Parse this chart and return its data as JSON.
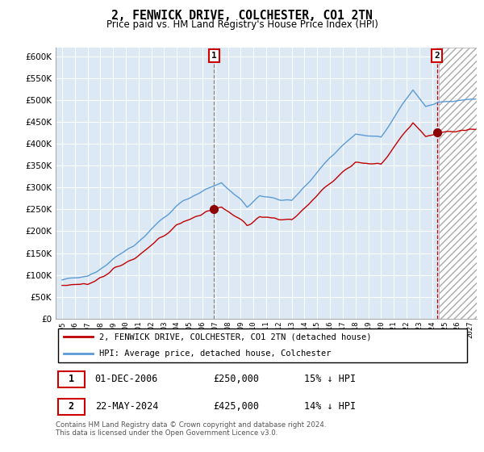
{
  "title": "2, FENWICK DRIVE, COLCHESTER, CO1 2TN",
  "subtitle": "Price paid vs. HM Land Registry's House Price Index (HPI)",
  "legend_line1": "2, FENWICK DRIVE, COLCHESTER, CO1 2TN (detached house)",
  "legend_line2": "HPI: Average price, detached house, Colchester",
  "annotation1_date": "01-DEC-2006",
  "annotation1_price": "£250,000",
  "annotation1_hpi": "15% ↓ HPI",
  "annotation2_date": "22-MAY-2024",
  "annotation2_price": "£425,000",
  "annotation2_hpi": "14% ↓ HPI",
  "footer": "Contains HM Land Registry data © Crown copyright and database right 2024.\nThis data is licensed under the Open Government Licence v3.0.",
  "sale1_year": 2006.917,
  "sale1_price": 250000,
  "sale2_year": 2024.375,
  "sale2_price": 425000,
  "hpi_line_color": "#5b9bd5",
  "price_line_color": "#c00000",
  "sale_marker_color": "#8b0000",
  "background_color": "#ffffff",
  "chart_bg_color": "#dce9f5",
  "grid_color": "#ffffff",
  "ylim_min": 0,
  "ylim_max": 620000,
  "xlim_min": 1994.5,
  "xlim_max": 2027.5,
  "future_start": 2024.5
}
